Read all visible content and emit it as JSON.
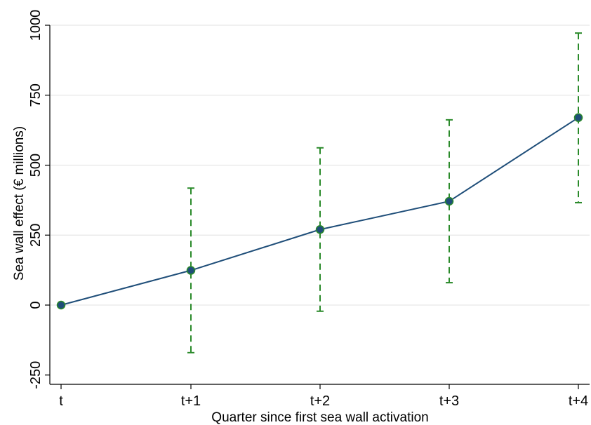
{
  "chart_data": {
    "type": "line",
    "xlabel": "Quarter since first sea wall activation",
    "ylabel": "Sea wall effect (€ millions)",
    "categories": [
      "t",
      "t+1",
      "t+2",
      "t+3",
      "t+4"
    ],
    "ylim": [
      -250,
      1000
    ],
    "yticks": [
      -250,
      0,
      250,
      500,
      750,
      1000
    ],
    "ytick_labels": [
      "-250",
      "0",
      "250",
      "500",
      "750",
      "1000"
    ],
    "grid": true,
    "series": [
      {
        "values": [
          0,
          124,
          270,
          371,
          670
        ],
        "ci_lower": [
          0,
          -170,
          -22,
          80,
          366
        ],
        "ci_upper": [
          0,
          418,
          562,
          662,
          972
        ]
      }
    ],
    "colors": {
      "line": "#1f4e79",
      "marker": "#1f4e79",
      "error_bar": "#2a8a2a",
      "grid": "#e6e6e6"
    }
  }
}
